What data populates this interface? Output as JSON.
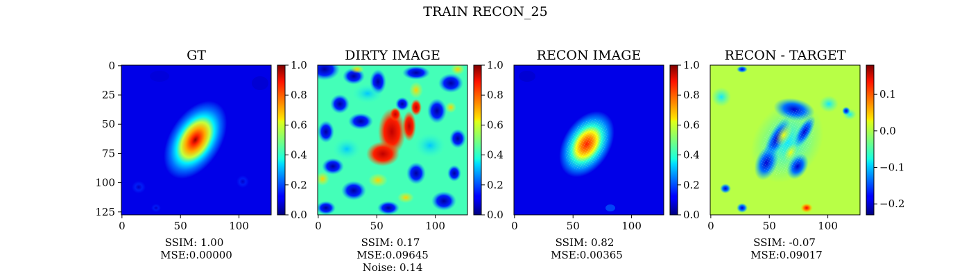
{
  "suptitle": "TRAIN RECON_25",
  "colormap": "jet",
  "chart_data": [
    {
      "type": "heatmap",
      "title": "GT",
      "xticks": [
        0,
        50,
        100
      ],
      "yticks": [
        0,
        25,
        50,
        75,
        100,
        125
      ],
      "xlim": [
        0,
        127
      ],
      "ylim": [
        127,
        0
      ],
      "colorbar": {
        "range": [
          0.0,
          1.0
        ],
        "ticks": [
          "0.0",
          "0.2",
          "0.4",
          "0.6",
          "0.8",
          "1.0"
        ]
      },
      "caption": [
        "SSIM: 1.00",
        "MSE:0.00000"
      ]
    },
    {
      "type": "heatmap",
      "title": "DIRTY IMAGE",
      "xticks": [
        0,
        50,
        100
      ],
      "xlim": [
        0,
        127
      ],
      "ylim": [
        127,
        0
      ],
      "colorbar": {
        "range": [
          0.0,
          1.0
        ],
        "ticks": [
          "0.0",
          "0.2",
          "0.4",
          "0.6",
          "0.8",
          "1.0"
        ]
      },
      "caption": [
        "SSIM: 0.17",
        "MSE:0.09645",
        "Noise: 0.14"
      ]
    },
    {
      "type": "heatmap",
      "title": "RECON IMAGE",
      "xticks": [
        0,
        50,
        100
      ],
      "xlim": [
        0,
        127
      ],
      "ylim": [
        127,
        0
      ],
      "colorbar": {
        "range": [
          0.0,
          1.0
        ],
        "ticks": [
          "0.0",
          "0.2",
          "0.4",
          "0.6",
          "0.8",
          "1.0"
        ]
      },
      "caption": [
        "SSIM: 0.82",
        "MSE:0.00365"
      ]
    },
    {
      "type": "heatmap",
      "title": "RECON - TARGET",
      "xticks": [
        0,
        50,
        100
      ],
      "xlim": [
        0,
        127
      ],
      "ylim": [
        127,
        0
      ],
      "colorbar": {
        "range": [
          -0.23,
          0.18
        ],
        "ticks": [
          "0.1",
          "0.0",
          "−0.1",
          "−0.2"
        ],
        "tick_values": [
          0.1,
          0.0,
          -0.1,
          -0.2
        ]
      },
      "caption": [
        "SSIM: -0.07",
        "MSE:0.09017"
      ]
    }
  ]
}
